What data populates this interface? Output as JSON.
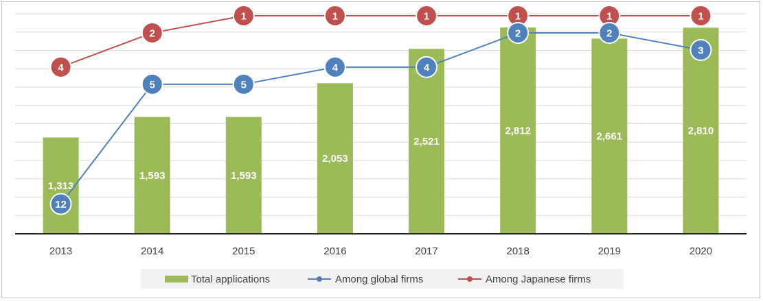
{
  "chart_data": {
    "type": "bar",
    "categories": [
      "2013",
      "2014",
      "2015",
      "2016",
      "2017",
      "2018",
      "2019",
      "2020"
    ],
    "bar_series": {
      "name": "Total applications",
      "values": [
        1313,
        1593,
        1593,
        2053,
        2521,
        2812,
        2661,
        2810
      ],
      "labels": [
        "1,313",
        "1,593",
        "1,593",
        "2,053",
        "2,521",
        "2,812",
        "2,661",
        "2,810"
      ],
      "color": "#9bbb59"
    },
    "rank_series": [
      {
        "name": "Among global firms",
        "values": [
          12,
          5,
          5,
          4,
          4,
          2,
          2,
          3
        ],
        "color": "#4f81bd"
      },
      {
        "name": "Among Japanese firms",
        "values": [
          4,
          2,
          1,
          1,
          1,
          1,
          1,
          1
        ],
        "color": "#c0504d"
      }
    ],
    "bar_ylim": [
      0,
      3000
    ],
    "rank_ylim": [
      0,
      12.5
    ],
    "grid": true,
    "legend_position": "bottom"
  }
}
